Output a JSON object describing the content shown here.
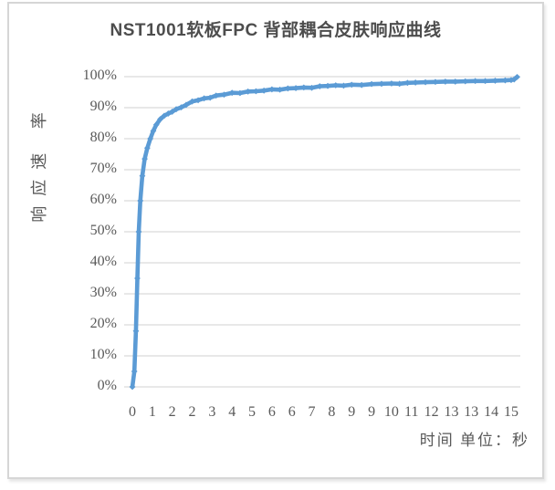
{
  "chart_data": {
    "type": "line",
    "title": "NST1001软板FPC 背部耦合皮肤响应曲线",
    "y_axis_title": "响应速 率",
    "x_axis_title": "时间 单位：秒",
    "ylim": [
      0,
      100
    ],
    "y_tick_labels": [
      "100%",
      "90%",
      "80%",
      "70%",
      "60%",
      "50%",
      "40%",
      "30%",
      "20%",
      "10%",
      "0%"
    ],
    "y_tick_values": [
      100,
      90,
      80,
      70,
      60,
      50,
      40,
      30,
      20,
      10,
      0
    ],
    "x_tick_labels": [
      "0",
      "1",
      "2",
      "2",
      "3",
      "4",
      "5",
      "6",
      "6",
      "7",
      "8",
      "9",
      "9",
      "10",
      "11",
      "12",
      "13",
      "13",
      "14",
      "15"
    ],
    "grid": "horizontal",
    "legend": "none",
    "colors": {
      "line": "#5b9bd5",
      "grid": "#d9d9d9",
      "text": "#595959",
      "title": "#4d4d4d",
      "frame_border": "#d6d6d6"
    },
    "series": [
      {
        "name": "响应速率",
        "marker": "diamond",
        "points_format": "[x_category_index, response_percent]",
        "points": [
          [
            0,
            0
          ],
          [
            0.1,
            5
          ],
          [
            0.18,
            18
          ],
          [
            0.25,
            35
          ],
          [
            0.32,
            50
          ],
          [
            0.4,
            60
          ],
          [
            0.5,
            68
          ],
          [
            0.62,
            73.5
          ],
          [
            0.75,
            77
          ],
          [
            0.9,
            80
          ],
          [
            1.05,
            82.5
          ],
          [
            1.2,
            84.5
          ],
          [
            1.4,
            86.3
          ],
          [
            1.6,
            87.4
          ],
          [
            1.8,
            88.1
          ],
          [
            2.0,
            88.7
          ],
          [
            2.2,
            89.5
          ],
          [
            2.45,
            90.1
          ],
          [
            2.7,
            90.9
          ],
          [
            3.0,
            92.0
          ],
          [
            3.3,
            92.4
          ],
          [
            3.6,
            93.0
          ],
          [
            3.9,
            93.2
          ],
          [
            4.2,
            93.9
          ],
          [
            4.6,
            94.2
          ],
          [
            5.0,
            94.8
          ],
          [
            5.4,
            94.7
          ],
          [
            5.8,
            95.2
          ],
          [
            6.2,
            95.3
          ],
          [
            6.6,
            95.5
          ],
          [
            7.0,
            95.9
          ],
          [
            7.4,
            95.8
          ],
          [
            7.8,
            96.2
          ],
          [
            8.2,
            96.3
          ],
          [
            8.6,
            96.5
          ],
          [
            9.0,
            96.4
          ],
          [
            9.4,
            96.9
          ],
          [
            9.8,
            97.0
          ],
          [
            10.2,
            97.2
          ],
          [
            10.6,
            97.1
          ],
          [
            11.0,
            97.4
          ],
          [
            11.5,
            97.3
          ],
          [
            12.0,
            97.6
          ],
          [
            12.5,
            97.7
          ],
          [
            13.0,
            97.8
          ],
          [
            13.4,
            97.7
          ],
          [
            13.8,
            98.0
          ],
          [
            14.2,
            98.1
          ],
          [
            14.7,
            98.2
          ],
          [
            15.2,
            98.3
          ],
          [
            15.7,
            98.4
          ],
          [
            16.2,
            98.4
          ],
          [
            16.7,
            98.5
          ],
          [
            17.2,
            98.6
          ],
          [
            17.7,
            98.6
          ],
          [
            18.2,
            98.7
          ],
          [
            18.7,
            98.8
          ],
          [
            19.0,
            98.9
          ],
          [
            19.15,
            99.1
          ],
          [
            19.3,
            99.9
          ]
        ]
      }
    ]
  }
}
